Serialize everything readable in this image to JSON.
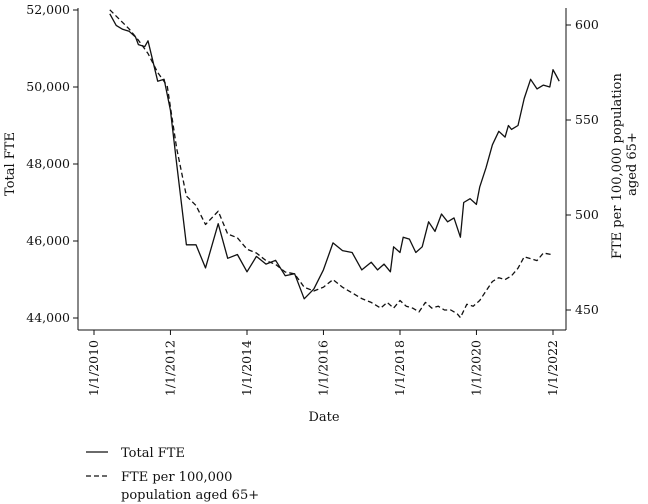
{
  "chart_data": {
    "type": "line",
    "xlabel": "Date",
    "ylabel_left": "Total FTE",
    "ylabel_right_lines": [
      "FTE per 100,000 population",
      "aged 65+"
    ],
    "x_domain": [
      "2010-01-01",
      "2022-01-01"
    ],
    "ylim_left": [
      44000,
      52000
    ],
    "ylim_right": [
      450,
      600
    ],
    "x_ticks": [
      {
        "date": "2010-01-01",
        "label": "1/1/2010"
      },
      {
        "date": "2012-01-01",
        "label": "1/1/2012"
      },
      {
        "date": "2014-01-01",
        "label": "1/1/2014"
      },
      {
        "date": "2016-01-01",
        "label": "1/1/2016"
      },
      {
        "date": "2018-01-01",
        "label": "1/1/2018"
      },
      {
        "date": "2020-01-01",
        "label": "1/1/2020"
      },
      {
        "date": "2022-01-01",
        "label": "1/1/2022"
      }
    ],
    "y_ticks_left": [
      {
        "value": 44000,
        "label": "44,000"
      },
      {
        "value": 46000,
        "label": "46,000"
      },
      {
        "value": 48000,
        "label": "48,000"
      },
      {
        "value": 50000,
        "label": "50,000"
      },
      {
        "value": 52000,
        "label": "52,000"
      }
    ],
    "y_ticks_right": [
      {
        "value": 450,
        "label": "450"
      },
      {
        "value": 500,
        "label": "500"
      },
      {
        "value": 550,
        "label": "550"
      },
      {
        "value": 600,
        "label": "600"
      }
    ],
    "grid": false,
    "legend_position": "bottom-left",
    "series": [
      {
        "name": "Total FTE",
        "axis": "left",
        "line_style": "solid",
        "points": [
          [
            "2010-06-01",
            51900
          ],
          [
            "2010-08-01",
            51600
          ],
          [
            "2010-10-01",
            51500
          ],
          [
            "2010-12-01",
            51450
          ],
          [
            "2011-02-01",
            51300
          ],
          [
            "2011-03-01",
            51100
          ],
          [
            "2011-05-01",
            51050
          ],
          [
            "2011-06-01",
            51200
          ],
          [
            "2011-09-01",
            50150
          ],
          [
            "2011-11-01",
            50200
          ],
          [
            "2012-01-01",
            49400
          ],
          [
            "2012-03-01",
            48000
          ],
          [
            "2012-06-01",
            45900
          ],
          [
            "2012-09-01",
            45900
          ],
          [
            "2012-12-01",
            45300
          ],
          [
            "2013-04-01",
            46450
          ],
          [
            "2013-07-01",
            45550
          ],
          [
            "2013-10-01",
            45650
          ],
          [
            "2014-01-01",
            45200
          ],
          [
            "2014-04-01",
            45600
          ],
          [
            "2014-07-01",
            45400
          ],
          [
            "2014-10-01",
            45500
          ],
          [
            "2015-01-01",
            45100
          ],
          [
            "2015-04-01",
            45150
          ],
          [
            "2015-07-01",
            44500
          ],
          [
            "2015-10-01",
            44750
          ],
          [
            "2016-01-01",
            45250
          ],
          [
            "2016-04-01",
            45950
          ],
          [
            "2016-07-01",
            45750
          ],
          [
            "2016-10-01",
            45700
          ],
          [
            "2017-01-01",
            45250
          ],
          [
            "2017-04-01",
            45450
          ],
          [
            "2017-06-01",
            45250
          ],
          [
            "2017-08-01",
            45400
          ],
          [
            "2017-10-01",
            45200
          ],
          [
            "2017-11-01",
            45850
          ],
          [
            "2018-01-01",
            45700
          ],
          [
            "2018-02-01",
            46100
          ],
          [
            "2018-04-01",
            46050
          ],
          [
            "2018-06-01",
            45700
          ],
          [
            "2018-08-01",
            45850
          ],
          [
            "2018-10-01",
            46500
          ],
          [
            "2018-12-01",
            46250
          ],
          [
            "2019-02-01",
            46700
          ],
          [
            "2019-04-01",
            46500
          ],
          [
            "2019-06-01",
            46600
          ],
          [
            "2019-08-01",
            46100
          ],
          [
            "2019-09-01",
            47000
          ],
          [
            "2019-11-01",
            47100
          ],
          [
            "2020-01-01",
            46950
          ],
          [
            "2020-02-01",
            47400
          ],
          [
            "2020-04-01",
            47900
          ],
          [
            "2020-06-01",
            48500
          ],
          [
            "2020-08-01",
            48850
          ],
          [
            "2020-10-01",
            48700
          ],
          [
            "2020-11-01",
            49000
          ],
          [
            "2020-12-01",
            48900
          ],
          [
            "2021-02-01",
            49000
          ],
          [
            "2021-04-01",
            49700
          ],
          [
            "2021-06-01",
            50200
          ],
          [
            "2021-08-01",
            49950
          ],
          [
            "2021-10-01",
            50050
          ],
          [
            "2021-12-01",
            50000
          ],
          [
            "2022-01-01",
            50450
          ],
          [
            "2022-02-01",
            50300
          ],
          [
            "2022-03-01",
            50150
          ]
        ]
      },
      {
        "name": "FTE per 100,000\npopulation aged 65+",
        "axis": "right",
        "line_style": "dashed",
        "points": [
          [
            "2010-06-01",
            608
          ],
          [
            "2010-09-01",
            603
          ],
          [
            "2010-12-01",
            598
          ],
          [
            "2011-03-01",
            592
          ],
          [
            "2011-06-01",
            585
          ],
          [
            "2011-09-01",
            575
          ],
          [
            "2011-12-01",
            568
          ],
          [
            "2012-03-01",
            535
          ],
          [
            "2012-06-01",
            510
          ],
          [
            "2012-09-01",
            505
          ],
          [
            "2012-12-01",
            495
          ],
          [
            "2013-04-01",
            502
          ],
          [
            "2013-07-01",
            490
          ],
          [
            "2013-10-01",
            488
          ],
          [
            "2014-01-01",
            482
          ],
          [
            "2014-04-01",
            480
          ],
          [
            "2014-07-01",
            476
          ],
          [
            "2014-10-01",
            474
          ],
          [
            "2015-01-01",
            470
          ],
          [
            "2015-04-01",
            469
          ],
          [
            "2015-07-01",
            462
          ],
          [
            "2015-10-01",
            460
          ],
          [
            "2016-01-01",
            462
          ],
          [
            "2016-04-01",
            466
          ],
          [
            "2016-07-01",
            462
          ],
          [
            "2016-10-01",
            459
          ],
          [
            "2017-01-01",
            456
          ],
          [
            "2017-04-01",
            454
          ],
          [
            "2017-07-01",
            451
          ],
          [
            "2017-09-01",
            454
          ],
          [
            "2017-11-01",
            451
          ],
          [
            "2018-01-01",
            455
          ],
          [
            "2018-03-01",
            452
          ],
          [
            "2018-05-01",
            451
          ],
          [
            "2018-07-01",
            449
          ],
          [
            "2018-09-01",
            454
          ],
          [
            "2018-11-01",
            451
          ],
          [
            "2019-01-01",
            452
          ],
          [
            "2019-03-01",
            450
          ],
          [
            "2019-05-01",
            450
          ],
          [
            "2019-07-01",
            448
          ],
          [
            "2019-08-01",
            446
          ],
          [
            "2019-10-01",
            453
          ],
          [
            "2019-12-01",
            452
          ],
          [
            "2020-02-01",
            455
          ],
          [
            "2020-04-01",
            460
          ],
          [
            "2020-06-01",
            465
          ],
          [
            "2020-08-01",
            467
          ],
          [
            "2020-10-01",
            466
          ],
          [
            "2020-12-01",
            468
          ],
          [
            "2021-02-01",
            472
          ],
          [
            "2021-04-01",
            478
          ],
          [
            "2021-06-01",
            477
          ],
          [
            "2021-08-01",
            476
          ],
          [
            "2021-10-01",
            480
          ],
          [
            "2022-01-01",
            479
          ]
        ]
      }
    ]
  }
}
